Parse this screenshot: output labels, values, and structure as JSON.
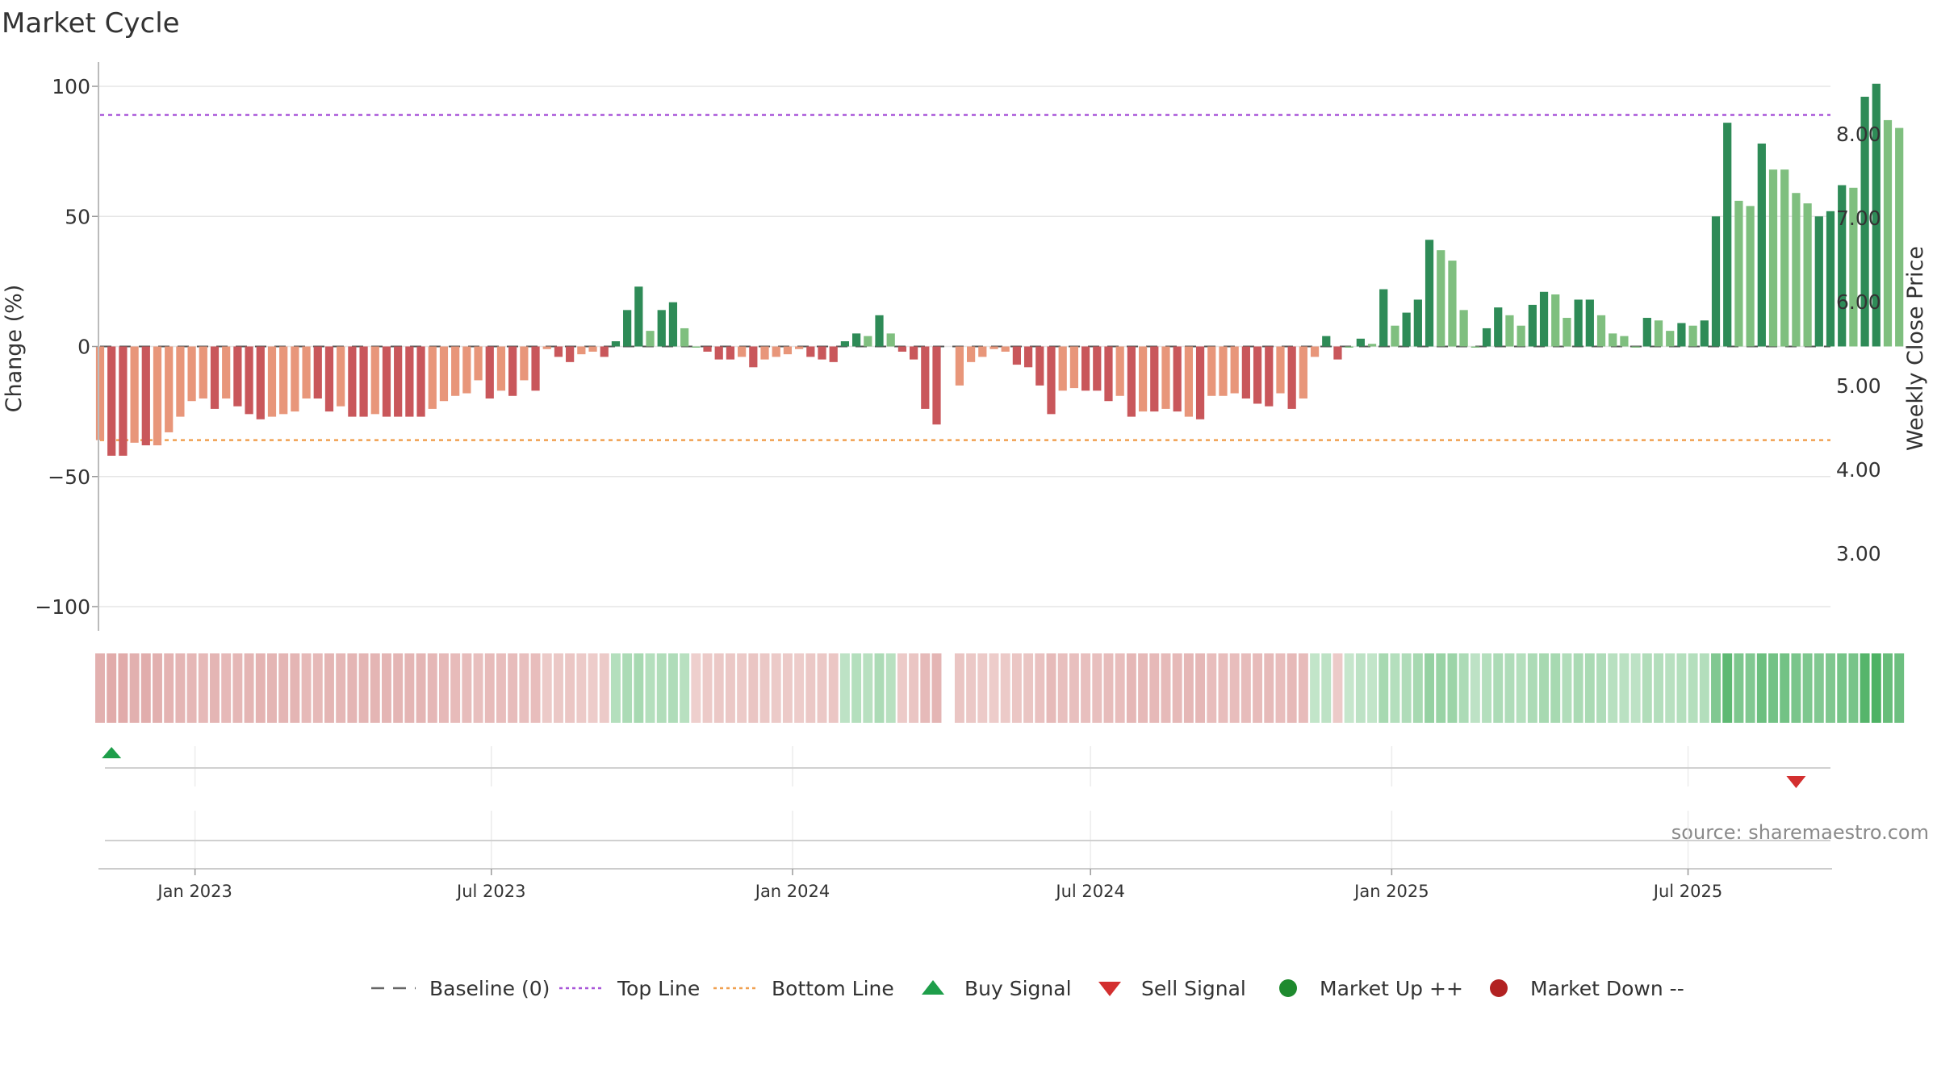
{
  "chart_data": {
    "type": "bar",
    "title": "Market Cycle",
    "ylabel": "Change (%)",
    "y2label": "Weekly Close Price",
    "ylim": [
      -110,
      105
    ],
    "y_ticks": [
      100,
      50,
      0,
      -50,
      -100
    ],
    "y_tick_labels": [
      "100",
      "50",
      "0",
      "−50",
      "−100"
    ],
    "y2_ticks": [
      8.0,
      7.0,
      6.0,
      5.0,
      4.0,
      3.0
    ],
    "y2_tick_labels": [
      "8.00",
      "7.00",
      "6.00",
      "5.00",
      "4.00",
      "3.00"
    ],
    "x_range": [
      "2022-11-04",
      "2025-09-26"
    ],
    "x_ticks": [
      "2023-01-01",
      "2023-07-01",
      "2024-01-01",
      "2024-07-01",
      "2025-01-01",
      "2025-07-01"
    ],
    "x_tick_labels": [
      "Jan 2023",
      "Jul 2023",
      "Jan 2024",
      "Jul 2024",
      "Jan 2025",
      "Jul 2025"
    ],
    "reference_lines": {
      "baseline": 0,
      "top": 89,
      "bottom": -36
    },
    "colors": {
      "up_strong": "#2e8b57",
      "up_weak": "#7fbf7f",
      "down_strong": "#c9575b",
      "down_weak": "#e8967a",
      "top_line": "#a855d8",
      "bottom_line": "#f0a050",
      "baseline": "#555555",
      "buy": "#1e9e4a",
      "sell": "#d32f2f",
      "market_up": "#1e8a2e",
      "market_down": "#b22222"
    },
    "series": [
      {
        "start_date": "2022-11-04",
        "interval_days": 7,
        "values": [
          -36,
          -42,
          -42,
          -37,
          -38,
          -38,
          -33,
          -27,
          -21,
          -20,
          -24,
          -20,
          -23,
          -26,
          -28,
          -27,
          -26,
          -25,
          -20,
          -20,
          -25,
          -23,
          -27,
          -27,
          -26,
          -27,
          -27,
          -27,
          -27,
          -24,
          -21,
          -19,
          -18,
          -13,
          -20,
          -17,
          -19,
          -13,
          -17,
          -1,
          -4,
          -6,
          -3,
          -2,
          -4,
          2,
          14,
          23,
          6,
          14,
          17,
          7,
          0,
          -2,
          -5,
          -5,
          -4,
          -8,
          -5,
          -4,
          -3,
          -1,
          -4,
          -5,
          -6,
          2,
          5,
          4,
          12,
          5,
          -2,
          -5,
          -24,
          -30,
          null,
          -15,
          -6,
          -4,
          -1,
          -2,
          -7,
          -8,
          -15,
          -26,
          -17,
          -16,
          -17,
          -17,
          -21,
          -19,
          -27,
          -25,
          -25,
          -24,
          -25,
          -27,
          -28,
          -19,
          -19,
          -18,
          -20,
          -22,
          -23,
          -18,
          -24,
          -20,
          -4,
          4,
          -5,
          0,
          3,
          1,
          22,
          8,
          13,
          18,
          41,
          37,
          33,
          14,
          0,
          7,
          15,
          12,
          8,
          16,
          21,
          20,
          11,
          18,
          18,
          12,
          5,
          4,
          0,
          11,
          10,
          6,
          9,
          8,
          10,
          50,
          86,
          56,
          54,
          78,
          68,
          68,
          59,
          55,
          50,
          52,
          62,
          61,
          96,
          101,
          87,
          84
        ],
        "trend": [
          "weak",
          "strong",
          "strong",
          "weak",
          "strong",
          "weak",
          "weak",
          "weak",
          "weak",
          "weak",
          "strong",
          "weak",
          "strong",
          "strong",
          "strong",
          "weak",
          "weak",
          "weak",
          "weak",
          "strong",
          "strong",
          "weak",
          "strong",
          "strong",
          "weak",
          "strong",
          "strong",
          "strong",
          "strong",
          "weak",
          "weak",
          "weak",
          "weak",
          "weak",
          "strong",
          "weak",
          "strong",
          "weak",
          "strong",
          "weak",
          "strong",
          "strong",
          "weak",
          "weak",
          "strong",
          "strong",
          "strong",
          "strong",
          "weak",
          "strong",
          "strong",
          "weak",
          "weak",
          "strong",
          "strong",
          "strong",
          "weak",
          "strong",
          "weak",
          "weak",
          "weak",
          "weak",
          "strong",
          "strong",
          "strong",
          "strong",
          "strong",
          "weak",
          "strong",
          "weak",
          "strong",
          "strong",
          "strong",
          "strong",
          "strong",
          "weak",
          "weak",
          "weak",
          "weak",
          "weak",
          "strong",
          "strong",
          "strong",
          "strong",
          "weak",
          "weak",
          "strong",
          "strong",
          "strong",
          "weak",
          "strong",
          "weak",
          "strong",
          "weak",
          "strong",
          "weak",
          "strong",
          "weak",
          "weak",
          "weak",
          "strong",
          "strong",
          "strong",
          "weak",
          "strong",
          "weak",
          "weak",
          "strong",
          "strong",
          "weak",
          "strong",
          "weak",
          "strong",
          "weak",
          "strong",
          "strong",
          "strong",
          "weak",
          "weak",
          "weak",
          "weak",
          "strong",
          "strong",
          "weak",
          "weak",
          "strong",
          "strong",
          "weak",
          "weak",
          "strong",
          "strong",
          "weak",
          "weak",
          "weak",
          "weak",
          "strong",
          "weak",
          "weak",
          "strong",
          "weak",
          "strong",
          "strong",
          "strong",
          "weak",
          "weak",
          "strong",
          "weak",
          "weak",
          "weak",
          "weak",
          "strong",
          "strong",
          "strong",
          "weak",
          "strong",
          "strong",
          "weak",
          "weak"
        ]
      }
    ],
    "strip_levels": [
      -0.45,
      -0.5,
      -0.5,
      -0.45,
      -0.48,
      -0.45,
      -0.42,
      -0.4,
      -0.38,
      -0.36,
      -0.4,
      -0.36,
      -0.38,
      -0.4,
      -0.42,
      -0.4,
      -0.4,
      -0.4,
      -0.36,
      -0.36,
      -0.4,
      -0.38,
      -0.4,
      -0.4,
      -0.4,
      -0.4,
      -0.4,
      -0.4,
      -0.4,
      -0.38,
      -0.36,
      -0.34,
      -0.33,
      -0.3,
      -0.34,
      -0.32,
      -0.33,
      -0.3,
      -0.32,
      -0.2,
      -0.22,
      -0.24,
      -0.2,
      -0.18,
      -0.2,
      0.3,
      0.35,
      0.38,
      0.3,
      0.32,
      0.33,
      0.28,
      -0.15,
      -0.2,
      -0.22,
      -0.22,
      -0.2,
      -0.25,
      -0.22,
      -0.2,
      -0.2,
      -0.18,
      -0.22,
      -0.22,
      -0.24,
      0.25,
      0.3,
      0.28,
      0.35,
      0.28,
      -0.2,
      -0.25,
      -0.35,
      -0.4,
      null,
      -0.25,
      -0.22,
      -0.2,
      -0.18,
      -0.2,
      -0.24,
      -0.25,
      -0.28,
      -0.35,
      -0.3,
      -0.3,
      -0.3,
      -0.3,
      -0.33,
      -0.32,
      -0.38,
      -0.36,
      -0.36,
      -0.35,
      -0.36,
      -0.38,
      -0.38,
      -0.32,
      -0.32,
      -0.32,
      -0.33,
      -0.34,
      -0.35,
      -0.32,
      -0.36,
      -0.34,
      0.22,
      0.25,
      -0.2,
      0.2,
      0.25,
      0.22,
      0.38,
      0.3,
      0.33,
      0.38,
      0.48,
      0.46,
      0.44,
      0.35,
      0.25,
      0.3,
      0.35,
      0.33,
      0.3,
      0.35,
      0.38,
      0.38,
      0.32,
      0.36,
      0.36,
      0.33,
      0.28,
      0.27,
      0.25,
      0.32,
      0.31,
      0.28,
      0.3,
      0.3,
      0.31,
      0.6,
      0.8,
      0.62,
      0.6,
      0.72,
      0.68,
      0.68,
      0.64,
      0.62,
      0.6,
      0.61,
      0.66,
      0.65,
      0.85,
      0.9,
      0.75,
      0.72
    ],
    "buy_signals": [
      "2022-11-11"
    ],
    "sell_signals": [
      "2025-09-05"
    ],
    "annotation": "source: sharemaestro.com",
    "legend": [
      {
        "label": "Baseline (0)",
        "symbol": "dash-line",
        "color": "#666666"
      },
      {
        "label": "Top Line",
        "symbol": "dotted-line",
        "color": "#a855d8"
      },
      {
        "label": "Bottom Line",
        "symbol": "dotted-line",
        "color": "#f0a050"
      },
      {
        "label": "Buy Signal",
        "symbol": "triangle-up-icon",
        "color": "#1e9e4a"
      },
      {
        "label": "Sell Signal",
        "symbol": "triangle-down-icon",
        "color": "#d32f2f"
      },
      {
        "label": "Market Up ++",
        "symbol": "circle-icon",
        "color": "#1e8a2e"
      },
      {
        "label": "Market Down --",
        "symbol": "circle-icon",
        "color": "#b22222"
      }
    ],
    "legend_position": "bottom-center",
    "grid": true
  }
}
